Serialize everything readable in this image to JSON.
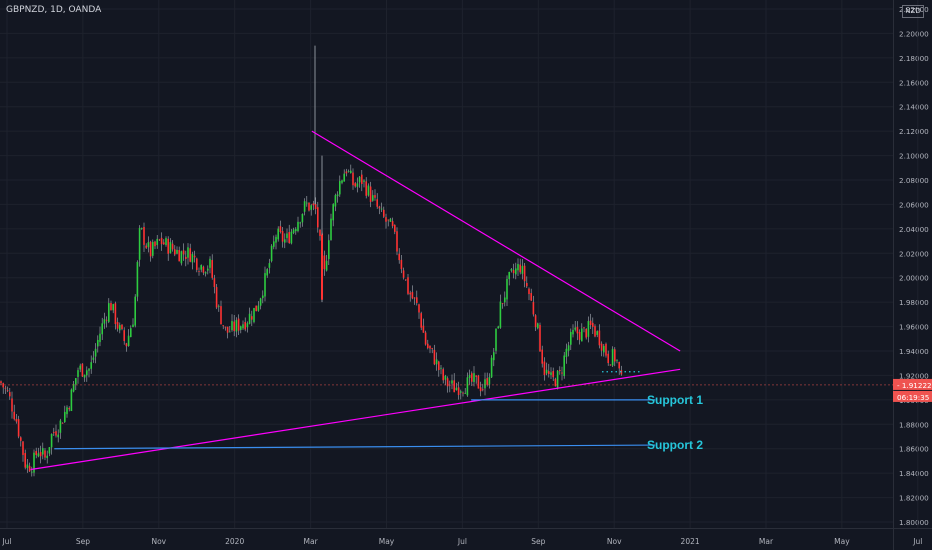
{
  "header": {
    "symbol_line": "GBPNZD, 1D, OANDA",
    "currency": "NZD"
  },
  "chart_data": {
    "type": "candlestick",
    "symbol": "GBPNZD",
    "interval": "1D",
    "exchange": "OANDA",
    "ylim": [
      1.8,
      2.22
    ],
    "y_ticks": [
      "2.22000",
      "2.20000",
      "2.18000",
      "2.16000",
      "2.14000",
      "2.12000",
      "2.10000",
      "2.08000",
      "2.06000",
      "2.04000",
      "2.02000",
      "2.00000",
      "1.98000",
      "1.96000",
      "1.94000",
      "1.92000",
      "1.90000",
      "1.88000",
      "1.86000",
      "1.84000",
      "1.82000",
      "1.80000"
    ],
    "x_ticks": [
      "Jul",
      "Sep",
      "Nov",
      "2020",
      "Mar",
      "May",
      "Jul",
      "Sep",
      "Nov",
      "2021",
      "Mar",
      "May",
      "Jul"
    ],
    "price_path": [
      [
        0,
        1.915
      ],
      [
        8,
        1.905
      ],
      [
        16,
        1.885
      ],
      [
        26,
        1.845
      ],
      [
        33,
        1.848
      ],
      [
        38,
        1.86
      ],
      [
        45,
        1.852
      ],
      [
        52,
        1.872
      ],
      [
        60,
        1.88
      ],
      [
        70,
        1.9
      ],
      [
        78,
        1.925
      ],
      [
        90,
        1.925
      ],
      [
        100,
        1.955
      ],
      [
        110,
        1.98
      ],
      [
        118,
        1.96
      ],
      [
        126,
        1.945
      ],
      [
        134,
        1.97
      ],
      [
        140,
        2.04
      ],
      [
        150,
        2.02
      ],
      [
        160,
        2.03
      ],
      [
        170,
        2.025
      ],
      [
        180,
        2.02
      ],
      [
        190,
        2.02
      ],
      [
        200,
        2.01
      ],
      [
        210,
        2.01
      ],
      [
        218,
        1.975
      ],
      [
        226,
        1.955
      ],
      [
        236,
        1.96
      ],
      [
        246,
        1.965
      ],
      [
        256,
        1.975
      ],
      [
        266,
        2.0
      ],
      [
        276,
        2.035
      ],
      [
        286,
        2.03
      ],
      [
        296,
        2.045
      ],
      [
        306,
        2.06
      ],
      [
        316,
        2.055
      ],
      [
        324,
        2.0
      ],
      [
        330,
        2.045
      ],
      [
        338,
        2.075
      ],
      [
        346,
        2.09
      ],
      [
        354,
        2.075
      ],
      [
        362,
        2.08
      ],
      [
        372,
        2.065
      ],
      [
        382,
        2.05
      ],
      [
        392,
        2.04
      ],
      [
        400,
        2.015
      ],
      [
        408,
        1.99
      ],
      [
        418,
        1.975
      ],
      [
        426,
        1.945
      ],
      [
        434,
        1.935
      ],
      [
        444,
        1.915
      ],
      [
        454,
        1.91
      ],
      [
        464,
        1.912
      ],
      [
        474,
        1.915
      ],
      [
        484,
        1.91
      ],
      [
        492,
        1.93
      ],
      [
        500,
        1.975
      ],
      [
        510,
        2.0
      ],
      [
        520,
        2.01
      ],
      [
        528,
        1.99
      ],
      [
        536,
        1.965
      ],
      [
        544,
        1.925
      ],
      [
        552,
        1.915
      ],
      [
        560,
        1.92
      ],
      [
        566,
        1.94
      ],
      [
        574,
        1.955
      ],
      [
        584,
        1.955
      ],
      [
        592,
        1.96
      ],
      [
        600,
        1.95
      ],
      [
        608,
        1.935
      ],
      [
        616,
        1.935
      ],
      [
        622,
        1.912
      ]
    ],
    "candle_colors": {
      "up": "#26a69a",
      "down": "#ef5350",
      "up_bright": "#2ecc40",
      "down_bright": "#ff3333"
    },
    "trendlines": [
      {
        "color": "#ff00ff",
        "points": [
          [
            "2020-03-02",
            2.12
          ],
          [
            "2020-12-24",
            1.94
          ]
        ]
      },
      {
        "color": "#ff00ff",
        "points": [
          [
            "2019-07-20",
            1.843
          ],
          [
            "2020-12-24",
            1.925
          ]
        ]
      },
      {
        "color": "#3a8eef",
        "points": [
          [
            "2020-07-08",
            1.9
          ],
          [
            "2020-12-04",
            1.9
          ]
        ],
        "label": "Support 1"
      },
      {
        "color": "#3a8eef",
        "points": [
          [
            "2019-08-09",
            1.86
          ],
          [
            "2020-12-04",
            1.863
          ]
        ],
        "label": "Support 2"
      }
    ],
    "last_price": "1.91222",
    "countdown": "06:19:35",
    "annotations": [
      {
        "text": "Support 1",
        "color": "#26c6da"
      },
      {
        "text": "Support 2",
        "color": "#26c6da"
      }
    ]
  }
}
